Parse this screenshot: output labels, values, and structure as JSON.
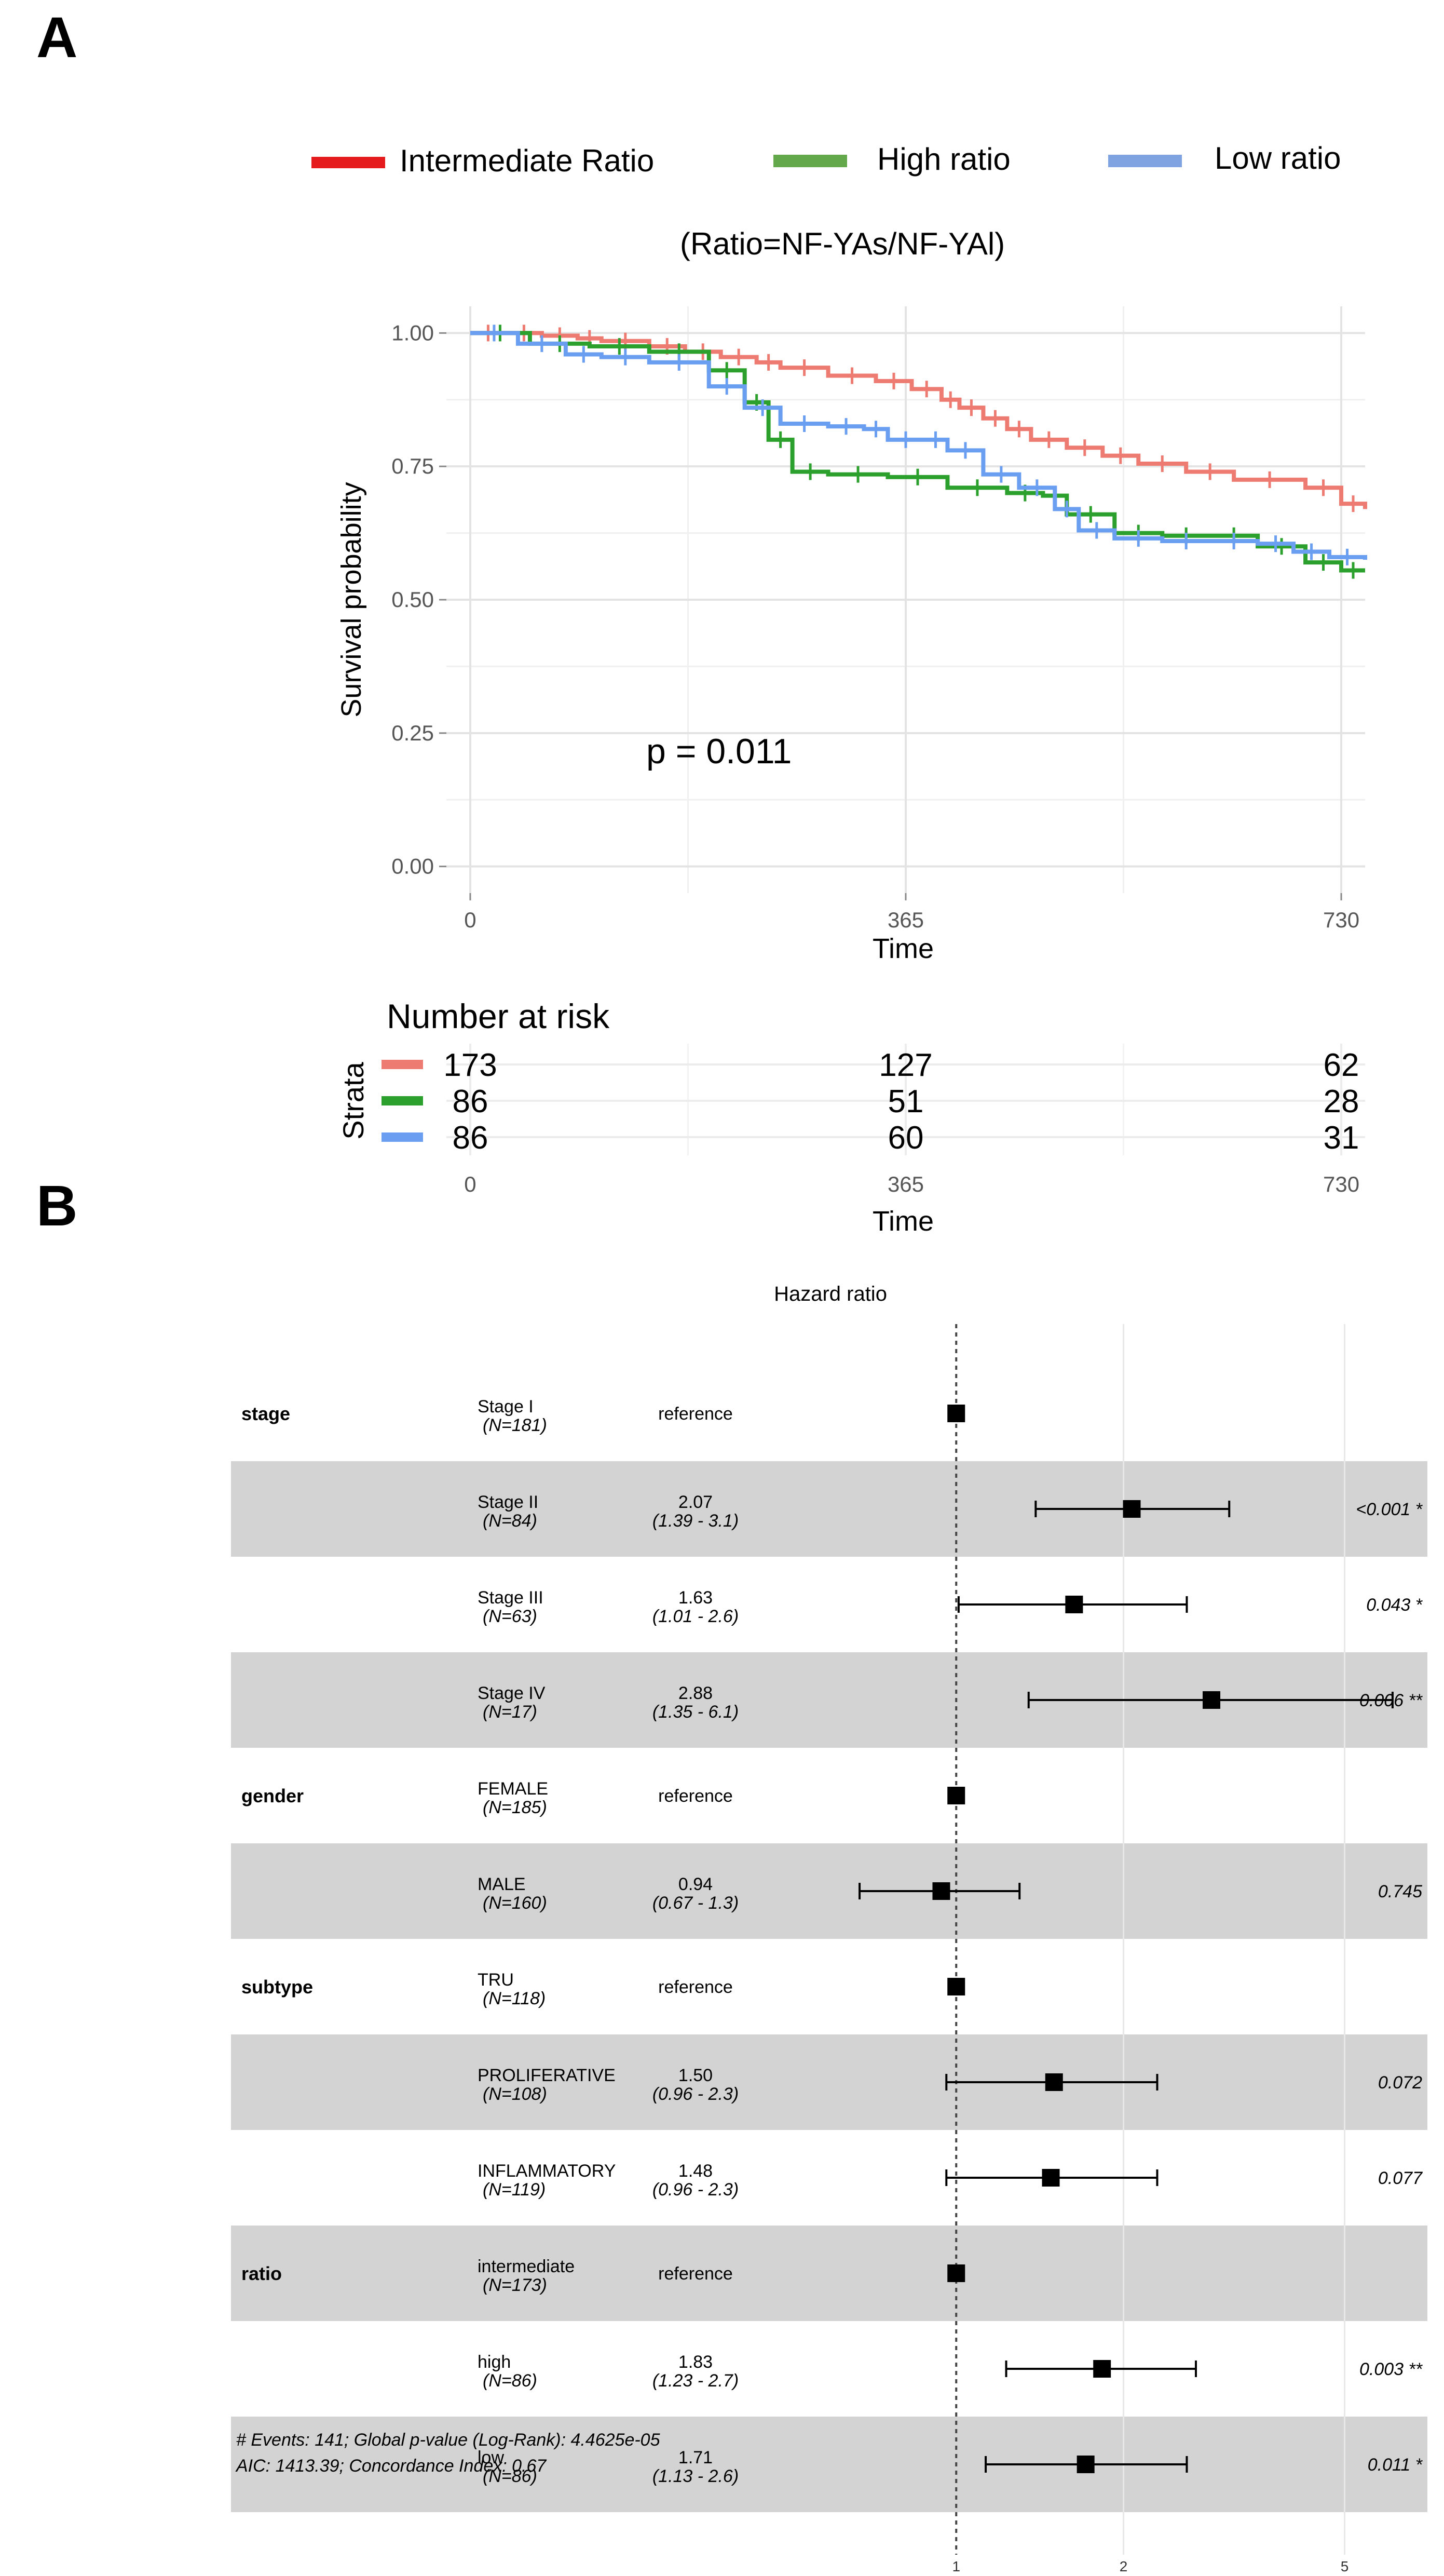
{
  "panels": {
    "a": "A",
    "b": "B"
  },
  "legend": {
    "entries": [
      {
        "label": "Intermediate Ratio",
        "color": "#e41a1c"
      },
      {
        "label": "High ratio",
        "color": "#63a84a"
      },
      {
        "label": "Low ratio",
        "color": "#7fa2e0"
      }
    ],
    "ratio_note": "(Ratio=NF-YAs/NF-YAl)"
  },
  "chart_data": [
    {
      "type": "line",
      "title": "",
      "xlabel": "Time",
      "ylabel": "Survival probability",
      "xlim": [
        -20,
        750
      ],
      "ylim": [
        -0.05,
        1.05
      ],
      "x_ticks": [
        0,
        365,
        730
      ],
      "y_ticks": [
        0.0,
        0.25,
        0.5,
        0.75,
        1.0
      ],
      "y_tick_labels": [
        "0.00",
        "0.25",
        "0.50",
        "0.75",
        "1.00"
      ],
      "grid": true,
      "pvalue": "p = 0.011",
      "series": [
        {
          "name": "Intermediate Ratio",
          "color": "#ed7b72",
          "x": [
            0,
            30,
            60,
            90,
            110,
            150,
            180,
            210,
            240,
            260,
            300,
            340,
            370,
            395,
            410,
            430,
            450,
            470,
            500,
            530,
            560,
            600,
            640,
            700,
            730,
            750
          ],
          "y": [
            1.0,
            1.0,
            0.995,
            0.99,
            0.985,
            0.975,
            0.965,
            0.955,
            0.945,
            0.935,
            0.92,
            0.91,
            0.895,
            0.875,
            0.86,
            0.84,
            0.82,
            0.8,
            0.785,
            0.77,
            0.755,
            0.74,
            0.725,
            0.71,
            0.68,
            0.67
          ]
        },
        {
          "name": "High ratio",
          "color": "#2ca02c",
          "x": [
            0,
            50,
            100,
            150,
            200,
            230,
            250,
            270,
            300,
            350,
            400,
            450,
            480,
            500,
            540,
            580,
            620,
            660,
            700,
            730,
            750
          ],
          "y": [
            1.0,
            0.98,
            0.975,
            0.965,
            0.93,
            0.87,
            0.8,
            0.74,
            0.735,
            0.73,
            0.71,
            0.7,
            0.695,
            0.66,
            0.625,
            0.62,
            0.62,
            0.6,
            0.57,
            0.555,
            0.555
          ]
        },
        {
          "name": "Low ratio",
          "color": "#6a9ef0",
          "x": [
            0,
            40,
            80,
            110,
            150,
            200,
            230,
            260,
            300,
            330,
            350,
            380,
            400,
            430,
            460,
            490,
            510,
            540,
            580,
            620,
            660,
            690,
            720,
            750
          ],
          "y": [
            1.0,
            0.98,
            0.96,
            0.955,
            0.945,
            0.9,
            0.86,
            0.83,
            0.825,
            0.82,
            0.8,
            0.8,
            0.78,
            0.735,
            0.71,
            0.67,
            0.63,
            0.615,
            0.61,
            0.61,
            0.605,
            0.59,
            0.58,
            0.575
          ]
        }
      ]
    },
    {
      "type": "table",
      "title": "Number at risk",
      "ylabel": "Strata",
      "xlabel": "Time",
      "x_ticks": [
        0,
        365,
        730
      ],
      "rows": [
        {
          "color": "#ed7b72",
          "values": [
            "173",
            "127",
            "62"
          ]
        },
        {
          "color": "#2ca02c",
          "values": [
            "86",
            "51",
            "28"
          ]
        },
        {
          "color": "#6a9ef0",
          "values": [
            "86",
            "60",
            "31"
          ]
        }
      ]
    },
    {
      "type": "scatter",
      "title": "Hazard ratio",
      "x_scale": "log",
      "xlim": [
        0.5,
        7.2
      ],
      "x_ticks": [
        1,
        2,
        5
      ],
      "x_tick_labels": [
        "1",
        "2",
        "5"
      ],
      "reference_line": 1,
      "rows": [
        {
          "variable": "stage",
          "level": "Stage I",
          "n": "(N=181)",
          "estimate": "reference",
          "ci": "",
          "p": "",
          "hr": 1.0,
          "lo": null,
          "hi": null,
          "shaded": false
        },
        {
          "variable": "",
          "level": "Stage II",
          "n": "(N=84)",
          "estimate": "2.07",
          "ci": "(1.39 - 3.1)",
          "p": "<0.001 *",
          "hr": 2.07,
          "lo": 1.39,
          "hi": 3.1,
          "shaded": true
        },
        {
          "variable": "",
          "level": "Stage III",
          "n": "(N=63)",
          "estimate": "1.63",
          "ci": "(1.01 - 2.6)",
          "p": "0.043 *",
          "hr": 1.63,
          "lo": 1.01,
          "hi": 2.6,
          "shaded": false
        },
        {
          "variable": "",
          "level": "Stage IV",
          "n": "(N=17)",
          "estimate": "2.88",
          "ci": "(1.35 - 6.1)",
          "p": "0.006 **",
          "hr": 2.88,
          "lo": 1.35,
          "hi": 6.1,
          "shaded": true
        },
        {
          "variable": "gender",
          "level": "FEMALE",
          "n": "(N=185)",
          "estimate": "reference",
          "ci": "",
          "p": "",
          "hr": 1.0,
          "lo": null,
          "hi": null,
          "shaded": false
        },
        {
          "variable": "",
          "level": "MALE",
          "n": "(N=160)",
          "estimate": "0.94",
          "ci": "(0.67 - 1.3)",
          "p": "0.745",
          "hr": 0.94,
          "lo": 0.67,
          "hi": 1.3,
          "shaded": true
        },
        {
          "variable": "subtype",
          "level": "TRU",
          "n": "(N=118)",
          "estimate": "reference",
          "ci": "",
          "p": "",
          "hr": 1.0,
          "lo": null,
          "hi": null,
          "shaded": false
        },
        {
          "variable": "",
          "level": "PROLIFERATIVE",
          "n": "(N=108)",
          "estimate": "1.50",
          "ci": "(0.96 - 2.3)",
          "p": "0.072",
          "hr": 1.5,
          "lo": 0.96,
          "hi": 2.3,
          "shaded": true
        },
        {
          "variable": "",
          "level": "INFLAMMATORY",
          "n": "(N=119)",
          "estimate": "1.48",
          "ci": "(0.96 - 2.3)",
          "p": "0.077",
          "hr": 1.48,
          "lo": 0.96,
          "hi": 2.3,
          "shaded": false
        },
        {
          "variable": "ratio",
          "level": "intermediate",
          "n": "(N=173)",
          "estimate": "reference",
          "ci": "",
          "p": "",
          "hr": 1.0,
          "lo": null,
          "hi": null,
          "shaded": true
        },
        {
          "variable": "",
          "level": "high",
          "n": "(N=86)",
          "estimate": "1.83",
          "ci": "(1.23 - 2.7)",
          "p": "0.003 **",
          "hr": 1.83,
          "lo": 1.23,
          "hi": 2.7,
          "shaded": false
        },
        {
          "variable": "",
          "level": "low",
          "n": "(N=86)",
          "estimate": "1.71",
          "ci": "(1.13 - 2.6)",
          "p": "0.011 *",
          "hr": 1.71,
          "lo": 1.13,
          "hi": 2.6,
          "shaded": true
        }
      ],
      "footnotes": [
        "# Events: 141; Global p-value (Log-Rank): 4.4625e-05",
        "AIC: 1413.39; Concordance Index: 0.67"
      ]
    }
  ]
}
